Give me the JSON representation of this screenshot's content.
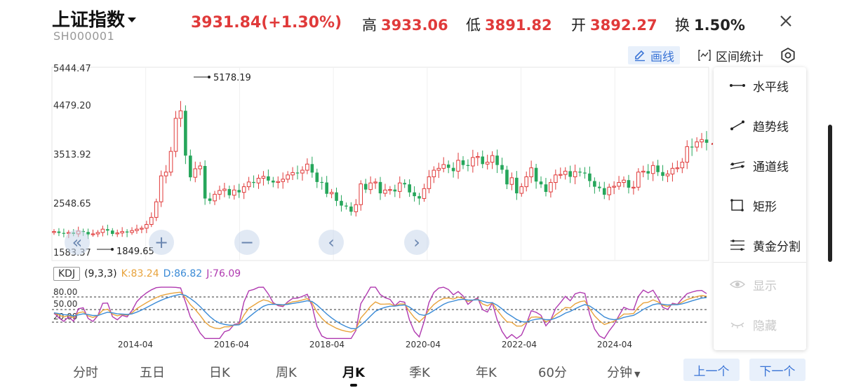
{
  "header": {
    "title": "上证指数",
    "code": "SH000001",
    "price": "3931.84(+1.30%)",
    "high_label": "高",
    "high_value": "3933.06",
    "low_label": "低",
    "low_value": "3891.82",
    "open_label": "开",
    "open_value": "3892.27",
    "turnover_label": "换",
    "turnover_value": "1.50%",
    "close_icon": "close-icon"
  },
  "toolbar": {
    "draw_label": "画线",
    "range_label": "区间统计",
    "gear_icon": "gear-icon"
  },
  "draw_menu": {
    "items": [
      {
        "label": "水平线",
        "icon": "horizontal-line-icon"
      },
      {
        "label": "趋势线",
        "icon": "trend-line-icon"
      },
      {
        "label": "通道线",
        "icon": "channel-line-icon"
      },
      {
        "label": "矩形",
        "icon": "rectangle-icon"
      },
      {
        "label": "黄金分割",
        "icon": "golden-ratio-icon"
      },
      {
        "label": "显示",
        "icon": "eye-icon",
        "disabled": true
      },
      {
        "label": "隐藏",
        "icon": "eye-closed-icon",
        "disabled": true
      }
    ]
  },
  "indicator": {
    "name": "KDJ",
    "params": "(9,3,3)",
    "k": "K:83.24",
    "d": "D:86.82",
    "j": "J:76.09"
  },
  "tabs": {
    "items": [
      "分时",
      "五日",
      "日K",
      "周K",
      "月K",
      "季K",
      "年K",
      "60分",
      "分钟"
    ],
    "active": "月K",
    "prev_label": "上一个",
    "next_label": "下一个"
  },
  "colors": {
    "up": "#e03a3a",
    "down": "#26a65b",
    "k": "#e8a33c",
    "d": "#3a8ad6",
    "j": "#b03ab0",
    "accent": "#3a74d6"
  },
  "chart_data": {
    "type": "candlestick",
    "y_ticks": [
      "5444.47",
      "4479.20",
      "3513.92",
      "2548.65",
      "1583.37"
    ],
    "ylim": [
      1583.37,
      5444.47
    ],
    "x_ticks": [
      "2014-04",
      "2016-04",
      "2018-04",
      "2020-04",
      "2022-04",
      "2024-04"
    ],
    "annotations": [
      {
        "label": "5178.19"
      },
      {
        "label": "1849.65"
      }
    ],
    "monthly_close": [
      2050,
      2020,
      2010,
      2030,
      2000,
      2060,
      2040,
      1990,
      2000,
      2030,
      2100,
      2070,
      2000,
      2020,
      2050,
      2030,
      2070,
      2100,
      2120,
      2200,
      2350,
      2680,
      3230,
      3310,
      3750,
      4450,
      4610,
      3660,
      3200,
      3380,
      3440,
      2750,
      2700,
      2840,
      2920,
      2950,
      2820,
      2930,
      2880,
      3000,
      3100,
      3080,
      3180,
      3220,
      3130,
      3090,
      3110,
      3160,
      3250,
      3300,
      3290,
      3350,
      3480,
      3300,
      3100,
      3090,
      2850,
      2880,
      2700,
      2600,
      2580,
      2470,
      2620,
      3060,
      2940,
      3080,
      3100,
      2860,
      2930,
      2940,
      2900,
      3080,
      3050,
      2880,
      2800,
      2750,
      2960,
      3210,
      3350,
      3390,
      3470,
      3400,
      3330,
      3560,
      3460,
      3440,
      3620,
      3640,
      3480,
      3520,
      3660,
      3460,
      3360,
      3050,
      3190,
      2860,
      3000,
      3210,
      3400,
      3110,
      3050,
      2890,
      3090,
      3250,
      3260,
      3330,
      3210,
      3320,
      3300,
      3280,
      3120,
      3000,
      2970,
      2830,
      2990,
      3010,
      3090,
      3140,
      2980,
      2990,
      3310,
      3330,
      3280,
      3450,
      3310,
      3230,
      3270,
      3390,
      3400,
      3520,
      3850,
      3840,
      3950,
      4000,
      3931.84
    ]
  }
}
